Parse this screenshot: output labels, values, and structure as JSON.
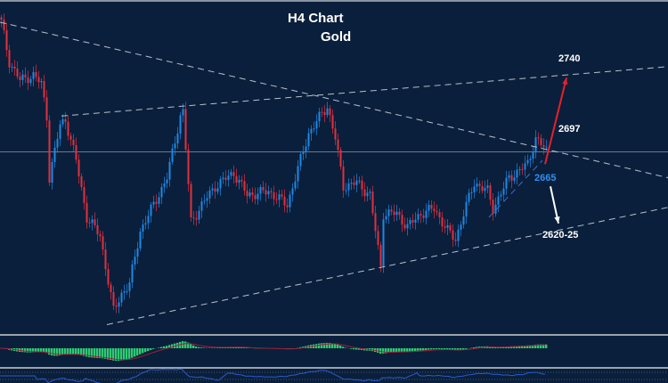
{
  "chart_data": {
    "type": "candlestick",
    "title": "H4 Chart",
    "subtitle": "Gold",
    "ylim": [
      2538,
      2805
    ],
    "xlim": [
      0,
      250
    ],
    "grid": false,
    "close_waypoints": [
      [
        0,
        2787
      ],
      [
        3,
        2755
      ],
      [
        7,
        2740
      ],
      [
        12,
        2744
      ],
      [
        15,
        2737
      ],
      [
        17,
        2711
      ],
      [
        18,
        2661
      ],
      [
        22,
        2704
      ],
      [
        24,
        2708
      ],
      [
        28,
        2675
      ],
      [
        32,
        2629
      ],
      [
        37,
        2614
      ],
      [
        42,
        2553
      ],
      [
        45,
        2567
      ],
      [
        48,
        2575
      ],
      [
        52,
        2618
      ],
      [
        57,
        2639
      ],
      [
        62,
        2661
      ],
      [
        67,
        2711
      ],
      [
        68,
        2715
      ],
      [
        71,
        2625
      ],
      [
        75,
        2639
      ],
      [
        80,
        2654
      ],
      [
        87,
        2665
      ],
      [
        92,
        2647
      ],
      [
        100,
        2650
      ],
      [
        107,
        2639
      ],
      [
        110,
        2661
      ],
      [
        115,
        2697
      ],
      [
        122,
        2719
      ],
      [
        125,
        2693
      ],
      [
        128,
        2654
      ],
      [
        133,
        2657
      ],
      [
        138,
        2647
      ],
      [
        142,
        2589
      ],
      [
        143,
        2632
      ],
      [
        148,
        2632
      ],
      [
        152,
        2621
      ],
      [
        157,
        2632
      ],
      [
        162,
        2636
      ],
      [
        167,
        2618
      ],
      [
        170,
        2611
      ],
      [
        173,
        2632
      ],
      [
        177,
        2657
      ],
      [
        182,
        2650
      ],
      [
        184,
        2636
      ],
      [
        190,
        2661
      ],
      [
        197,
        2672
      ],
      [
        200,
        2693
      ],
      [
        204,
        2683
      ]
    ],
    "horizontal_line": 2682,
    "trendlines": [
      {
        "name": "descending-resistance",
        "from": [
          0,
          2787
        ],
        "to": [
          250,
          2661
        ]
      },
      {
        "name": "upper-channel",
        "from": [
          23,
          2711
        ],
        "to": [
          250,
          2751
        ]
      },
      {
        "name": "lower-channel",
        "from": [
          40,
          2542
        ],
        "to": [
          250,
          2637
        ]
      },
      {
        "name": "short-term-support",
        "from": [
          183,
          2629
        ],
        "to": [
          203,
          2675
        ]
      }
    ],
    "arrows": [
      {
        "name": "bullish-arrow",
        "color": "#e8202a",
        "from": [
          204,
          2672
        ],
        "to": [
          212,
          2742
        ]
      },
      {
        "name": "bearish-arrow",
        "color": "#ffffff",
        "from": [
          206,
          2654
        ],
        "to": [
          209,
          2624
        ]
      }
    ],
    "annotations": [
      {
        "text": "2740",
        "color": "#ffffff",
        "at": [
          209,
          2757
        ]
      },
      {
        "text": "2697",
        "color": "#ffffff",
        "at": [
          209,
          2700
        ]
      },
      {
        "text": "2665",
        "color": "#2f8ff0",
        "at": [
          200,
          2660
        ]
      },
      {
        "text": "2620-25",
        "color": "#ffffff",
        "at": [
          203,
          2614
        ]
      }
    ],
    "colors": {
      "background": "#0a1f3b",
      "up": "#1e88e5",
      "down": "#e0303f",
      "histogram": "#2ecc71",
      "signal": "#a0203a",
      "oscillator": "#2a5bd0"
    }
  }
}
